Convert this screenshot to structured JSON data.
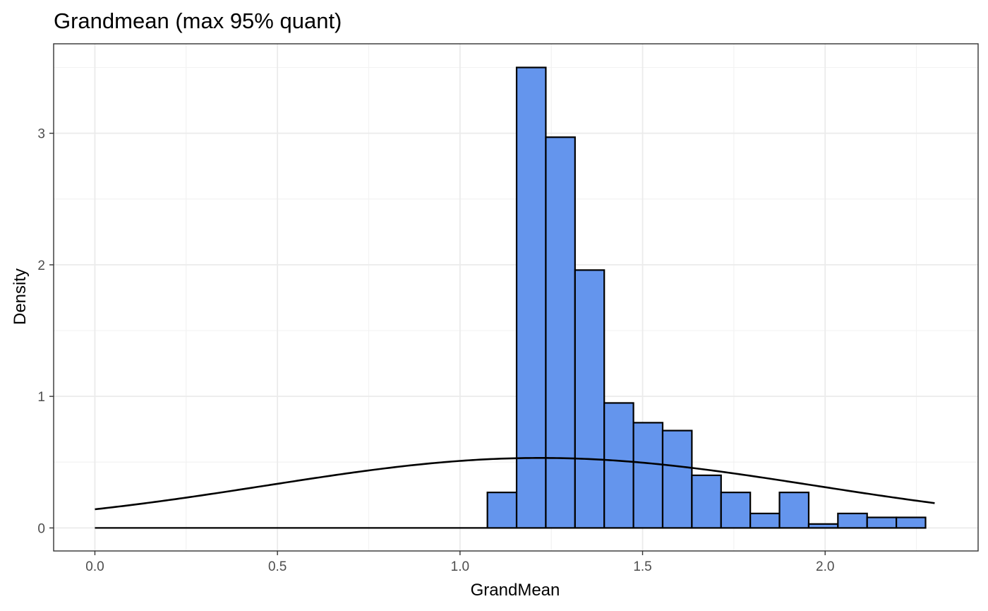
{
  "chart_data": {
    "type": "bar",
    "title": "Grandmean (max 95% quant)",
    "xlabel": "GrandMean",
    "ylabel": "Density",
    "xlim": [
      -0.113,
      2.419
    ],
    "ylim": [
      -0.175,
      3.68
    ],
    "x_ticks": [
      0.0,
      0.5,
      1.0,
      1.5,
      2.0
    ],
    "x_tick_labels": [
      "0.0",
      "0.5",
      "1.0",
      "1.5",
      "2.0"
    ],
    "y_ticks": [
      0,
      1,
      2,
      3
    ],
    "y_tick_labels": [
      "0",
      "1",
      "2",
      "3"
    ],
    "grid": true,
    "legend": "none",
    "bar_color": "#6495ED",
    "bins": [
      {
        "x0": 1.075,
        "x1": 1.155,
        "density": 0.27
      },
      {
        "x0": 1.155,
        "x1": 1.235,
        "density": 3.5
      },
      {
        "x0": 1.235,
        "x1": 1.315,
        "density": 2.97
      },
      {
        "x0": 1.315,
        "x1": 1.395,
        "density": 1.96
      },
      {
        "x0": 1.395,
        "x1": 1.475,
        "density": 0.95
      },
      {
        "x0": 1.475,
        "x1": 1.555,
        "density": 0.8
      },
      {
        "x0": 1.555,
        "x1": 1.635,
        "density": 0.74
      },
      {
        "x0": 1.635,
        "x1": 1.715,
        "density": 0.4
      },
      {
        "x0": 1.715,
        "x1": 1.795,
        "density": 0.27
      },
      {
        "x0": 1.795,
        "x1": 1.875,
        "density": 0.11
      },
      {
        "x0": 1.875,
        "x1": 1.955,
        "density": 0.27
      },
      {
        "x0": 1.955,
        "x1": 2.035,
        "density": 0.03
      },
      {
        "x0": 2.035,
        "x1": 2.115,
        "density": 0.11
      },
      {
        "x0": 2.115,
        "x1": 2.195,
        "density": 0.08
      },
      {
        "x0": 2.195,
        "x1": 2.275,
        "density": 0.08
      }
    ],
    "density_curve": {
      "type": "normal",
      "mean": 1.22,
      "sd": 0.75,
      "x_range": [
        0.0,
        2.3
      ]
    }
  }
}
